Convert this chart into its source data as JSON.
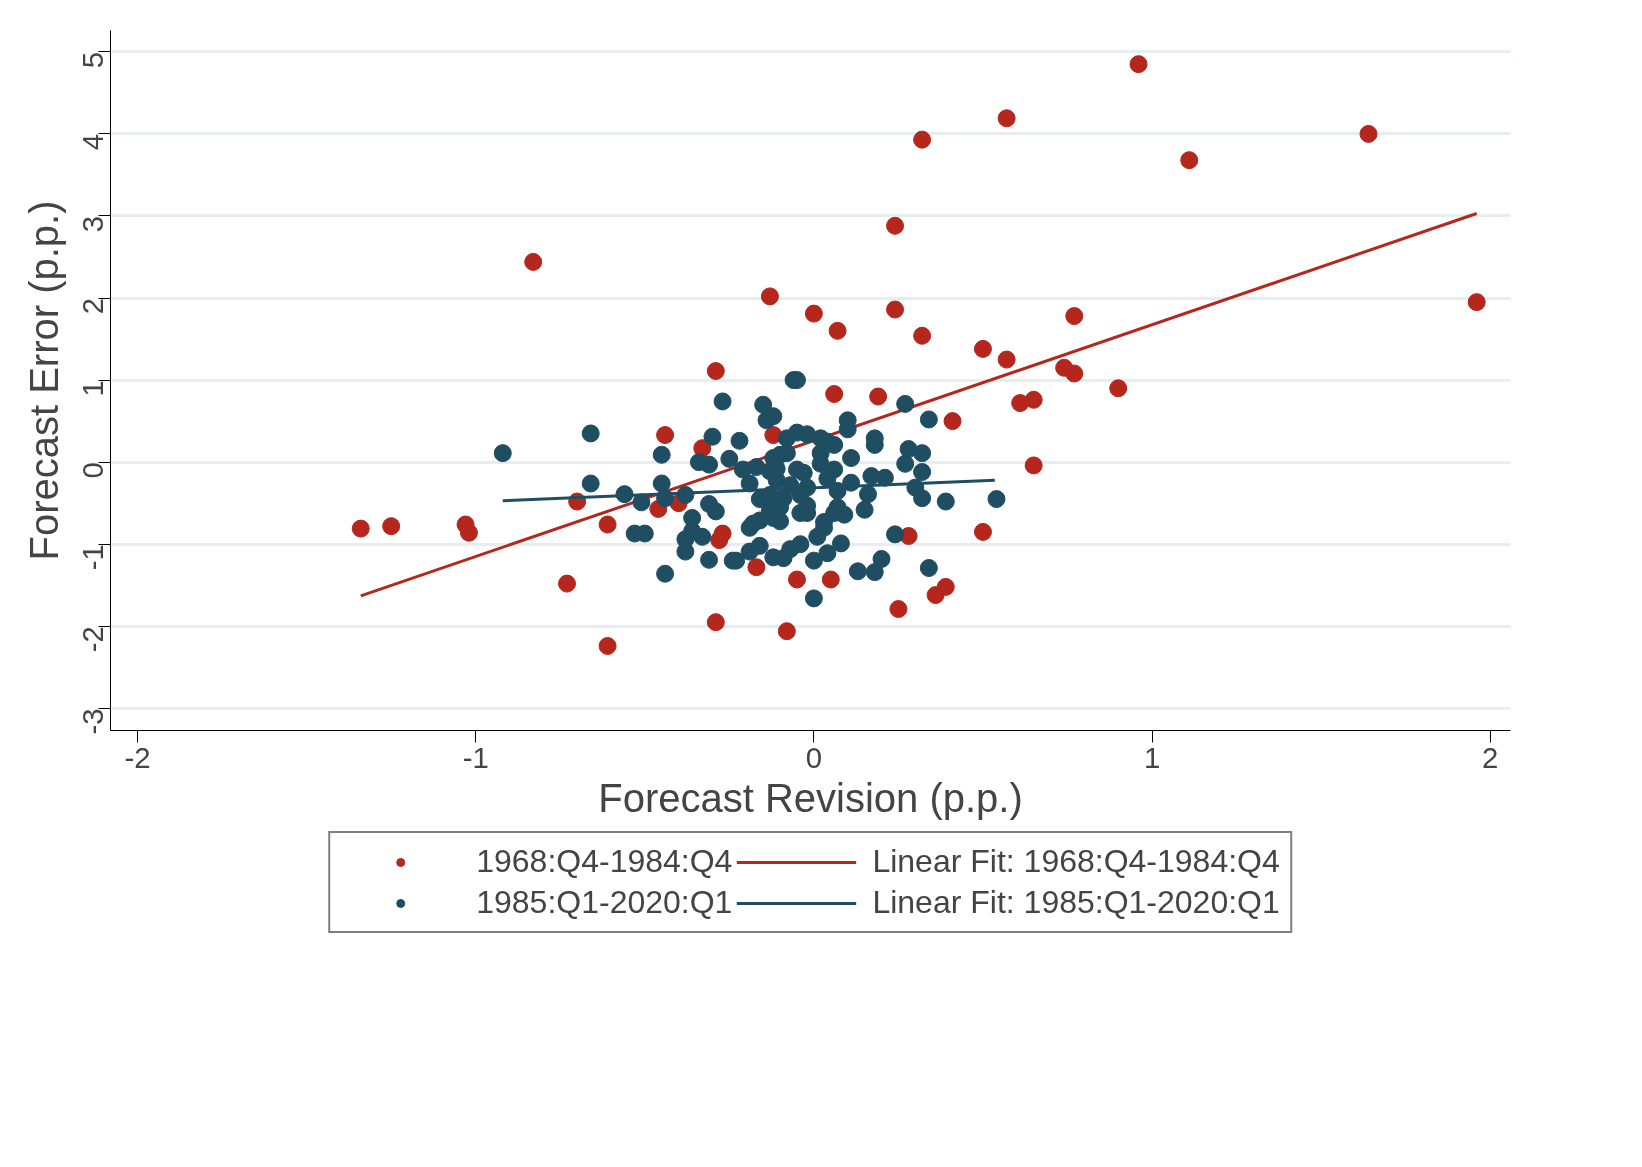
{
  "chart_data": {
    "type": "scatter",
    "xlabel": "Forecast Revision (p.p.)",
    "ylabel": "Forecast Error (p.p.)",
    "xlim": [
      -2.08,
      2.06
    ],
    "ylim": [
      -3.27,
      5.26
    ],
    "xticks": [
      -2,
      -1,
      0,
      1,
      2
    ],
    "yticks": [
      -3,
      -2,
      -1,
      0,
      1,
      2,
      3,
      4,
      5
    ],
    "grid": "y",
    "legend": "bottom",
    "series": [
      {
        "name": "1968:Q4-1984:Q4",
        "color": "#b5271c",
        "x": [
          -1.34,
          -1.25,
          -1.03,
          -1.02,
          -0.83,
          -0.73,
          -0.7,
          -0.61,
          -0.61,
          -0.46,
          -0.44,
          -0.4,
          -0.33,
          -0.29,
          -0.29,
          -0.28,
          -0.27,
          -0.17,
          -0.13,
          -0.12,
          -0.08,
          -0.05,
          0.0,
          0.05,
          0.06,
          0.07,
          0.19,
          0.24,
          0.24,
          0.25,
          0.28,
          0.32,
          0.32,
          0.36,
          0.39,
          0.41,
          0.5,
          0.5,
          0.57,
          0.57,
          0.61,
          0.65,
          0.65,
          0.74,
          0.77,
          0.77,
          0.9,
          0.96,
          1.11,
          1.64,
          1.96
        ],
        "values": [
          -0.81,
          -0.78,
          -0.76,
          -0.86,
          2.44,
          -1.48,
          -0.48,
          -2.24,
          -0.76,
          -0.57,
          0.33,
          -0.5,
          0.17,
          -1.95,
          1.11,
          -0.95,
          -0.87,
          -1.28,
          2.02,
          0.33,
          -2.06,
          -1.43,
          1.81,
          -1.43,
          0.83,
          1.6,
          0.8,
          2.88,
          1.86,
          -1.79,
          -0.9,
          3.93,
          1.54,
          -1.62,
          -1.52,
          0.5,
          -0.85,
          1.38,
          4.19,
          1.25,
          0.72,
          0.76,
          -0.04,
          1.15,
          1.08,
          1.78,
          0.9,
          4.85,
          3.68,
          4.0,
          1.95
        ]
      },
      {
        "name": "Linear Fit: 1968:Q4-1984:Q4",
        "type": "line",
        "color": "#b5271c",
        "x": [
          -1.34,
          1.96
        ],
        "values": [
          -1.63,
          3.03
        ]
      },
      {
        "name": "1985:Q1-2020:Q1",
        "color": "#1f4e63",
        "x": [
          -0.92,
          -0.66,
          -0.66,
          -0.56,
          -0.51,
          -0.45,
          -0.45,
          -0.44,
          -0.38,
          -0.53,
          -0.5,
          -0.44,
          -0.38,
          -0.38,
          -0.36,
          -0.36,
          -0.33,
          -0.34,
          -0.31,
          -0.3,
          -0.31,
          -0.29,
          -0.31,
          -0.27,
          -0.25,
          -0.24,
          -0.23,
          -0.22,
          -0.21,
          -0.19,
          -0.19,
          -0.18,
          -0.16,
          -0.19,
          -0.16,
          -0.17,
          -0.15,
          -0.14,
          -0.12,
          -0.12,
          -0.13,
          -0.11,
          -0.16,
          -0.13,
          -0.13,
          -0.1,
          -0.12,
          -0.1,
          -0.12,
          -0.09,
          -0.08,
          -0.06,
          -0.05,
          -0.08,
          -0.07,
          -0.09,
          -0.07,
          -0.04,
          -0.05,
          -0.02,
          -0.05,
          -0.03,
          -0.04,
          -0.04,
          -0.02,
          -0.02,
          0.0,
          0.0,
          0.02,
          0.04,
          0.02,
          0.02,
          0.04,
          0.06,
          0.06,
          0.07,
          0.06,
          0.07,
          0.09,
          0.03,
          0.03,
          0.01,
          0.04,
          0.08,
          0.1,
          0.1,
          0.11,
          0.11,
          0.15,
          0.16,
          0.17,
          0.21,
          0.18,
          0.18,
          0.13,
          0.18,
          0.2,
          0.24,
          0.27,
          0.27,
          0.28,
          0.32,
          0.3,
          0.32,
          0.32,
          0.34,
          0.34,
          0.39,
          0.54,
          -0.1,
          -0.11,
          -0.02
        ],
        "values": [
          0.11,
          0.35,
          -0.26,
          -0.39,
          -0.49,
          0.09,
          -0.26,
          -0.44,
          -0.4,
          -0.87,
          -0.87,
          -1.36,
          -1.09,
          -0.94,
          -0.68,
          -0.84,
          -0.91,
          0.0,
          -0.03,
          0.31,
          -0.51,
          -0.6,
          -1.19,
          0.74,
          0.04,
          -1.2,
          -1.2,
          0.26,
          -0.09,
          -0.26,
          -0.8,
          -0.75,
          -0.71,
          -1.09,
          -1.02,
          -0.06,
          0.7,
          0.51,
          0.56,
          0.05,
          -0.11,
          -0.22,
          -0.45,
          -0.4,
          -0.59,
          -0.55,
          -0.68,
          -0.72,
          -1.16,
          -1.17,
          0.29,
          1.0,
          1.0,
          0.11,
          -0.28,
          -0.44,
          -1.06,
          -1.0,
          0.36,
          0.34,
          -0.09,
          -0.13,
          -0.4,
          -0.62,
          -0.62,
          -0.31,
          -1.66,
          -1.2,
          0.29,
          0.25,
          0.11,
          -0.02,
          -0.2,
          0.21,
          -0.09,
          -0.35,
          -0.62,
          -0.55,
          -0.64,
          -0.73,
          -0.8,
          -0.91,
          -1.11,
          -0.99,
          0.51,
          0.4,
          0.05,
          -0.25,
          -0.58,
          -0.39,
          -0.17,
          -0.19,
          0.29,
          0.21,
          -1.33,
          -1.34,
          -1.18,
          -0.88,
          0.71,
          -0.02,
          0.16,
          0.11,
          -0.31,
          -0.12,
          -0.44,
          0.52,
          -1.29,
          -0.48,
          -0.45,
          0.09,
          -0.08,
          -0.53
        ]
      },
      {
        "name": "Linear Fit: 1985:Q1-2020:Q1",
        "type": "line",
        "color": "#1f4e63",
        "x": [
          -0.92,
          0.535
        ],
        "values": [
          -0.47,
          -0.22
        ]
      }
    ]
  }
}
